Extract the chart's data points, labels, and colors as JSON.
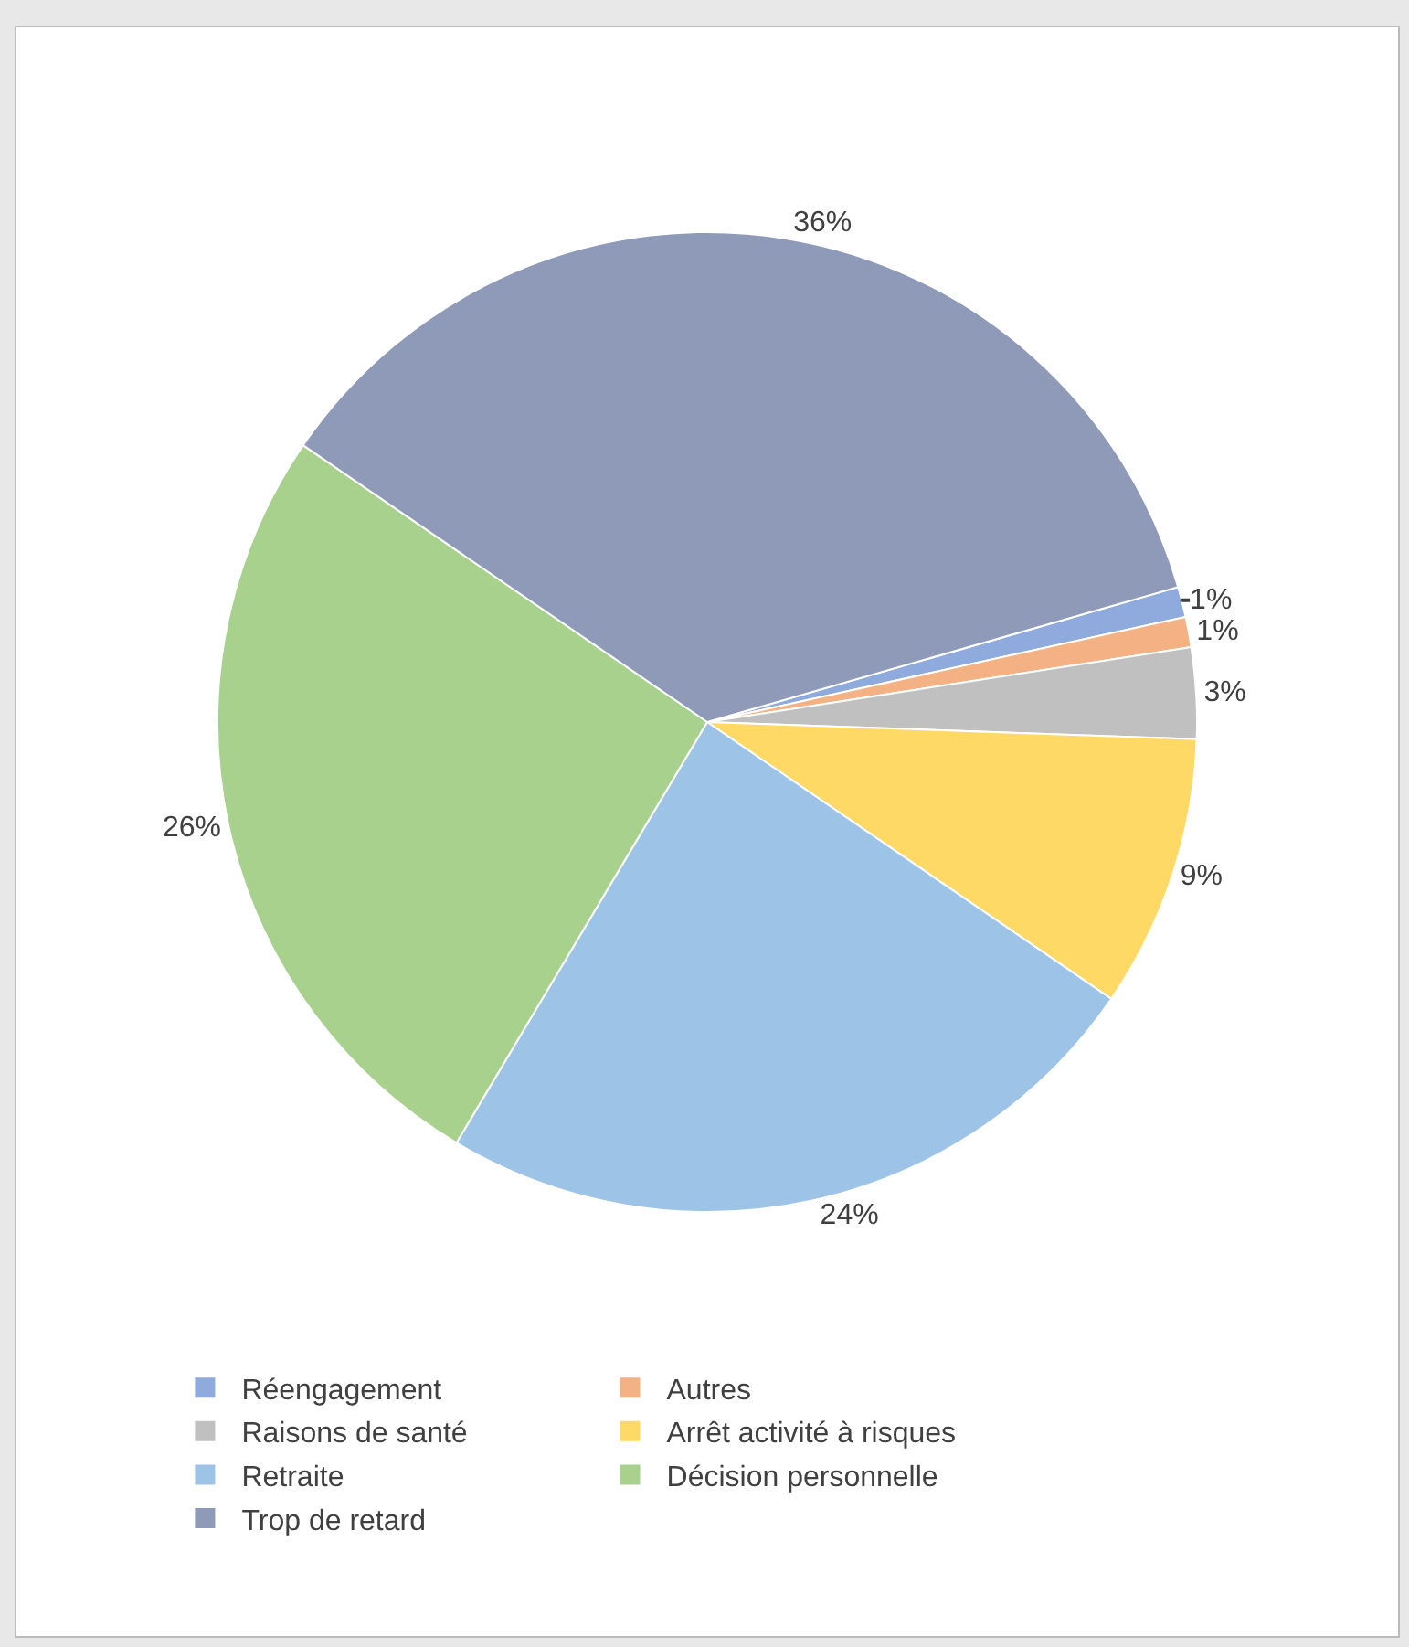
{
  "chart_data": {
    "type": "pie",
    "categories": [
      "Réengagement",
      "Autres",
      "Raisons de santé",
      "Arrêt activité à risques",
      "Retraite",
      "Décision personnelle",
      "Trop de retard"
    ],
    "values": [
      1,
      1,
      3,
      9,
      24,
      26,
      36
    ],
    "value_labels": [
      "1%",
      "1%",
      "3%",
      "9%",
      "24%",
      "26%",
      "36%"
    ],
    "colors": [
      "#8faadc",
      "#f4b183",
      "#c0c0c0",
      "#ffd966",
      "#9dc3e6",
      "#a9d18e",
      "#8e9ab8"
    ],
    "legend": "bottom"
  }
}
